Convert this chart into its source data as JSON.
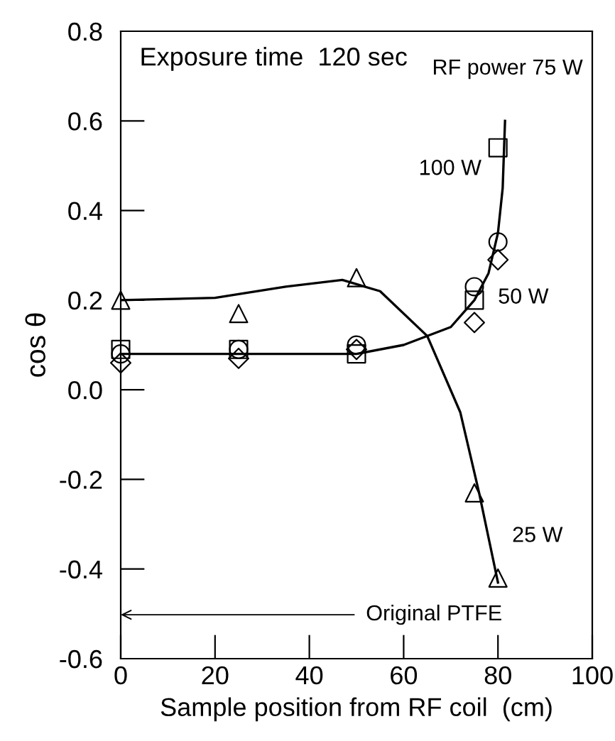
{
  "chart_data": {
    "type": "scatter",
    "xlabel": "Sample position from RF coil  (cm)",
    "ylabel": "cos θ",
    "xlim": [
      0,
      100
    ],
    "xticks": [
      0,
      20,
      40,
      60,
      80,
      100
    ],
    "ylim": [
      -0.6,
      0.8
    ],
    "yticks": [
      {
        "value": 0.8,
        "label": "0.8"
      },
      {
        "value": 0.6,
        "label": "0.6"
      },
      {
        "value": 0.4,
        "label": "0.4"
      },
      {
        "value": 0.2,
        "label": "0.2"
      },
      {
        "value": 0.0,
        "label": "0.0"
      },
      {
        "value": -0.2,
        "label": "-0.2"
      },
      {
        "value": -0.4,
        "label": "-0.4"
      },
      {
        "value": -0.6,
        "label": "-0.6"
      }
    ],
    "grid": false,
    "legend": false,
    "series": [
      {
        "marker": "triangle",
        "color": "#000000",
        "x": [
          0,
          25,
          50,
          75,
          80
        ],
        "values": [
          0.2,
          0.17,
          0.25,
          -0.23,
          -0.42
        ]
      },
      {
        "marker": "square",
        "color": "#000000",
        "x": [
          0,
          25,
          50,
          75,
          80
        ],
        "values": [
          0.09,
          0.09,
          0.08,
          0.2,
          0.54
        ]
      },
      {
        "marker": "circle",
        "color": "#000000",
        "x": [
          0,
          25,
          50,
          75,
          80
        ],
        "values": [
          0.08,
          0.09,
          0.1,
          0.23,
          0.33
        ]
      },
      {
        "marker": "diamond",
        "color": "#000000",
        "x": [
          0,
          25,
          50,
          75,
          80
        ],
        "values": [
          0.06,
          0.07,
          0.09,
          0.15,
          0.29
        ]
      },
      {
        "type": "line",
        "line_style": "solid",
        "color": "#000000",
        "x": [
          0,
          50,
          60,
          70,
          75,
          78,
          80,
          81,
          81.5
        ],
        "values": [
          0.08,
          0.08,
          0.1,
          0.14,
          0.2,
          0.26,
          0.35,
          0.45,
          0.6
        ]
      },
      {
        "type": "line",
        "line_style": "solid",
        "color": "#000000",
        "x": [
          0,
          20,
          35,
          47,
          55,
          65,
          72,
          76,
          79,
          80
        ],
        "values": [
          0.2,
          0.205,
          0.23,
          0.245,
          0.22,
          0.12,
          -0.05,
          -0.23,
          -0.38,
          -0.43
        ]
      }
    ],
    "annotations": [
      "Exposure time  120 sec",
      "RF power 75 W",
      "100 W",
      "50 W",
      "25 W",
      "Original PTFE"
    ]
  }
}
